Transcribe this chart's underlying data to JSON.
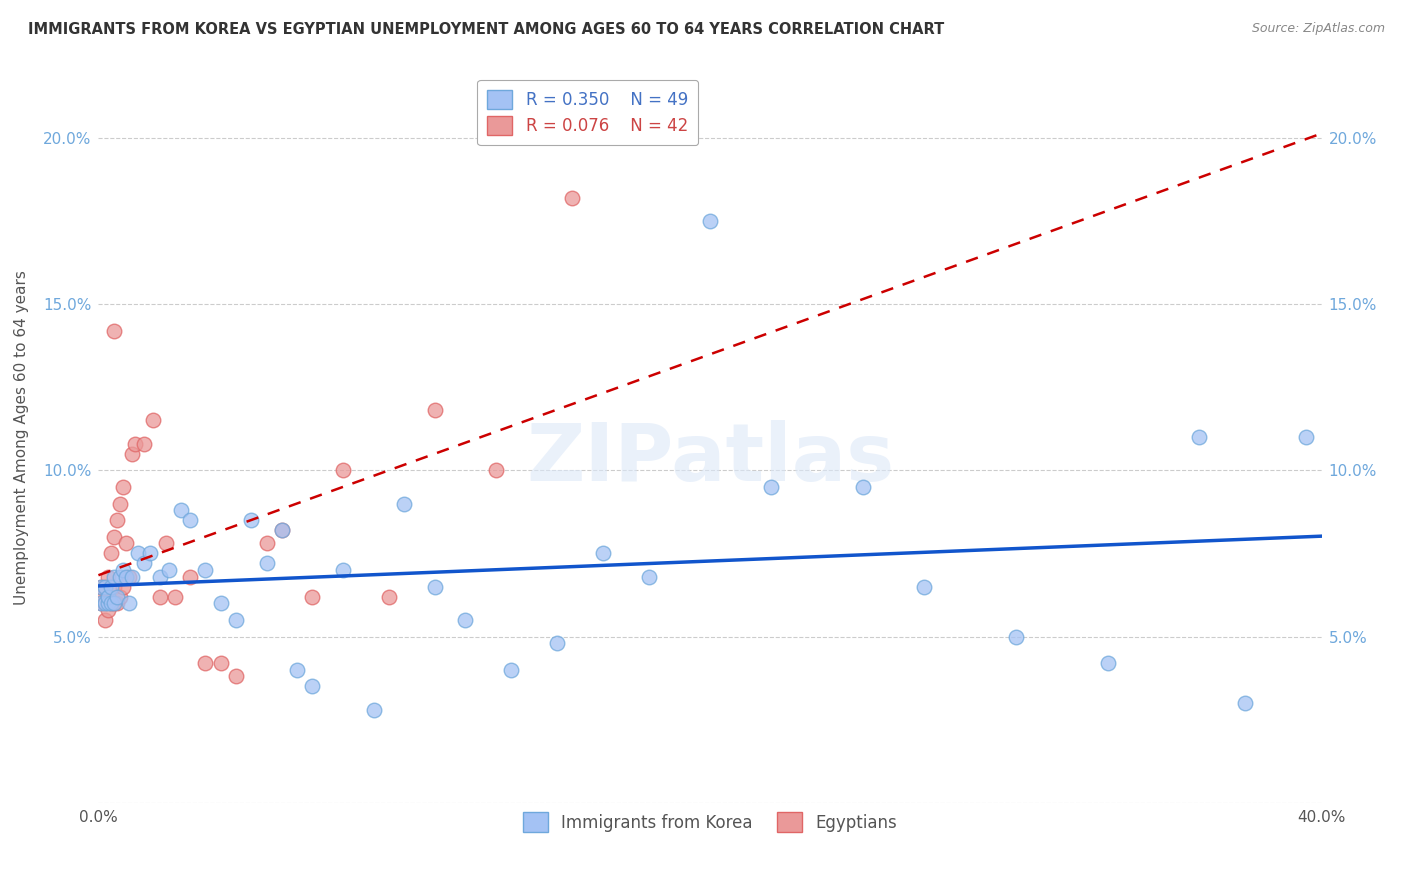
{
  "title": "IMMIGRANTS FROM KOREA VS EGYPTIAN UNEMPLOYMENT AMONG AGES 60 TO 64 YEARS CORRELATION CHART",
  "source": "Source: ZipAtlas.com",
  "ylabel": "Unemployment Among Ages 60 to 64 years",
  "xlim": [
    0.0,
    0.4
  ],
  "ylim": [
    0.0,
    0.22
  ],
  "legend1_R": "0.350",
  "legend1_N": "49",
  "legend2_R": "0.076",
  "legend2_N": "42",
  "korea_color": "#a4c2f4",
  "egypt_color": "#ea9999",
  "korea_edge_color": "#6fa8dc",
  "egypt_edge_color": "#e06666",
  "korea_line_color": "#1155cc",
  "egypt_line_color": "#cc0000",
  "tick_color": "#6fa8dc",
  "watermark": "ZIPatlas",
  "korea_x": [
    0.001,
    0.001,
    0.002,
    0.002,
    0.003,
    0.003,
    0.004,
    0.004,
    0.005,
    0.005,
    0.006,
    0.007,
    0.008,
    0.009,
    0.01,
    0.011,
    0.013,
    0.015,
    0.017,
    0.02,
    0.023,
    0.027,
    0.03,
    0.035,
    0.04,
    0.045,
    0.05,
    0.055,
    0.06,
    0.065,
    0.07,
    0.08,
    0.09,
    0.1,
    0.11,
    0.12,
    0.135,
    0.15,
    0.165,
    0.18,
    0.2,
    0.22,
    0.25,
    0.27,
    0.3,
    0.33,
    0.36,
    0.375,
    0.395
  ],
  "korea_y": [
    0.06,
    0.065,
    0.06,
    0.065,
    0.06,
    0.062,
    0.06,
    0.065,
    0.06,
    0.068,
    0.062,
    0.068,
    0.07,
    0.068,
    0.06,
    0.068,
    0.075,
    0.072,
    0.075,
    0.068,
    0.07,
    0.088,
    0.085,
    0.07,
    0.06,
    0.055,
    0.085,
    0.072,
    0.082,
    0.04,
    0.035,
    0.07,
    0.028,
    0.09,
    0.065,
    0.055,
    0.04,
    0.048,
    0.075,
    0.068,
    0.175,
    0.095,
    0.095,
    0.065,
    0.05,
    0.042,
    0.11,
    0.03,
    0.11
  ],
  "egypt_x": [
    0.001,
    0.001,
    0.001,
    0.002,
    0.002,
    0.002,
    0.003,
    0.003,
    0.003,
    0.004,
    0.004,
    0.005,
    0.005,
    0.005,
    0.006,
    0.006,
    0.007,
    0.007,
    0.008,
    0.008,
    0.009,
    0.01,
    0.011,
    0.012,
    0.015,
    0.018,
    0.02,
    0.022,
    0.025,
    0.03,
    0.035,
    0.04,
    0.045,
    0.055,
    0.06,
    0.07,
    0.08,
    0.095,
    0.11,
    0.13,
    0.155,
    0.005
  ],
  "egypt_y": [
    0.06,
    0.062,
    0.065,
    0.055,
    0.06,
    0.065,
    0.058,
    0.062,
    0.068,
    0.06,
    0.075,
    0.06,
    0.065,
    0.08,
    0.06,
    0.085,
    0.062,
    0.09,
    0.065,
    0.095,
    0.078,
    0.068,
    0.105,
    0.108,
    0.108,
    0.115,
    0.062,
    0.078,
    0.062,
    0.068,
    0.042,
    0.042,
    0.038,
    0.078,
    0.082,
    0.062,
    0.1,
    0.062,
    0.118,
    0.1,
    0.182,
    0.142
  ]
}
